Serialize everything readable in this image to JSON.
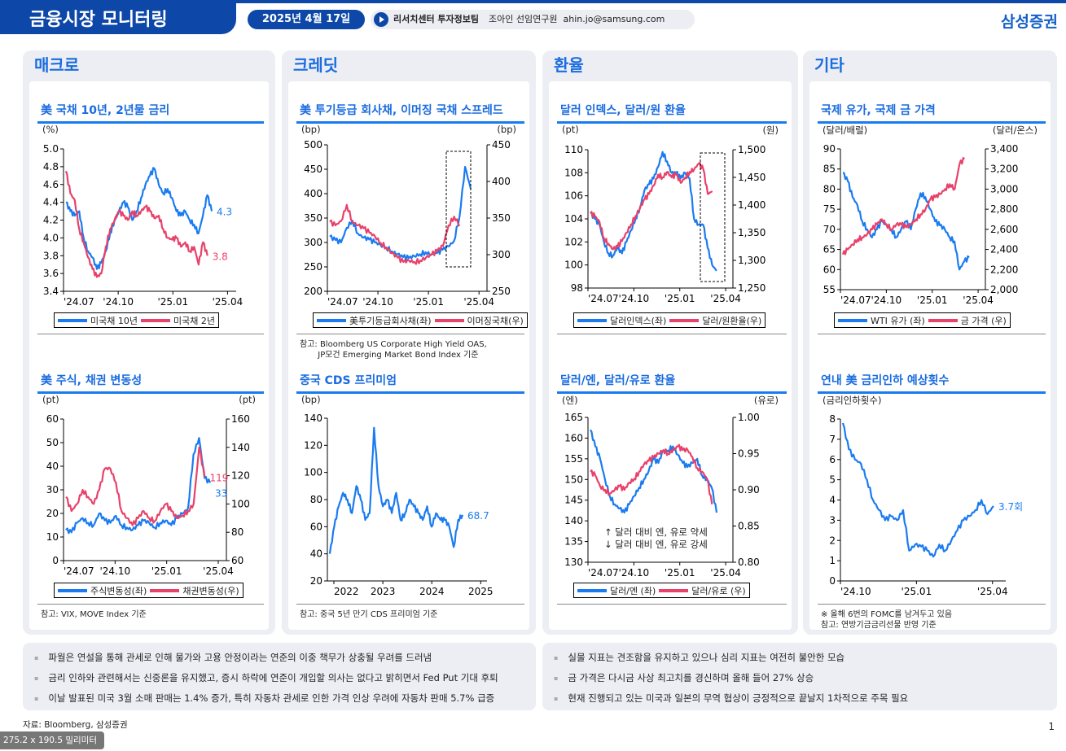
{
  "header": {
    "title": "금융시장 모니터링",
    "date": "2025년 4월 17일",
    "dept": "리서치센터 투자정보팀",
    "author": "조아인 선임연구원",
    "email": "ahin.jo@samsung.com",
    "brand": "삼성증권"
  },
  "colors": {
    "blue": "#1a7bf0",
    "red": "#e8416a",
    "accent": "#0d47a8"
  },
  "sections": [
    "매크로",
    "크레딧",
    "환율",
    "기타"
  ],
  "chart_data": [
    {
      "id": "c1",
      "type": "line",
      "title": "美 국채 10년, 2년물 금리",
      "left_unit": "(%)",
      "right_unit": "",
      "ylim": [
        3.4,
        5.0
      ],
      "yticks": [
        "5.0",
        "4.8",
        "4.6",
        "4.4",
        "4.2",
        "4.0",
        "3.8",
        "3.6",
        "3.4"
      ],
      "xticks": [
        "'24.07",
        "'24.10",
        "'25.01",
        "'25.04"
      ],
      "series": [
        {
          "name": "미국채 10년",
          "axis": "left",
          "color": "#1a7bf0",
          "end_label": "4.3",
          "values": [
            4.4,
            4.3,
            4.25,
            4.3,
            4.0,
            3.85,
            3.78,
            3.65,
            3.72,
            3.85,
            4.05,
            4.2,
            4.3,
            4.4,
            4.35,
            4.2,
            4.3,
            4.45,
            4.6,
            4.7,
            4.78,
            4.6,
            4.5,
            4.55,
            4.45,
            4.3,
            4.25,
            4.3,
            4.2,
            4.15,
            4.05,
            4.25,
            4.48,
            4.3
          ]
        },
        {
          "name": "미국채 2년",
          "axis": "left",
          "color": "#e8416a",
          "end_label": "3.8",
          "values": [
            4.75,
            4.5,
            4.42,
            4.1,
            3.95,
            3.78,
            3.65,
            3.56,
            3.6,
            3.9,
            4.1,
            4.2,
            4.3,
            4.25,
            4.2,
            4.3,
            4.25,
            4.3,
            4.35,
            4.3,
            4.22,
            4.25,
            4.1,
            4.0,
            3.98,
            4.0,
            3.9,
            3.95,
            3.85,
            3.9,
            3.7,
            3.95,
            3.8
          ]
        }
      ],
      "notes": []
    },
    {
      "id": "c2",
      "type": "line",
      "title": "美 투기등급 회사채, 이머징 국채 스프레드",
      "left_unit": "(bp)",
      "right_unit": "(bp)",
      "ylim": [
        200,
        500
      ],
      "y2lim": [
        250,
        450
      ],
      "yticks": [
        "500",
        "450",
        "400",
        "350",
        "300",
        "250",
        "200"
      ],
      "y2ticks": [
        "450",
        "400",
        "350",
        "300",
        "250"
      ],
      "xticks": [
        "'24.07",
        "'24.10",
        "'25.01",
        "'25.04"
      ],
      "series": [
        {
          "name": "美투기등급회사채(좌)",
          "axis": "left",
          "color": "#1a7bf0",
          "values": [
            312,
            305,
            300,
            330,
            345,
            318,
            310,
            306,
            300,
            295,
            290,
            282,
            276,
            270,
            268,
            272,
            276,
            280,
            275,
            278,
            285,
            292,
            302,
            352,
            455,
            410
          ]
        },
        {
          "name": "이머징국채(우)",
          "axis": "right",
          "color": "#e8416a",
          "values": [
            345,
            340,
            346,
            368,
            345,
            340,
            336,
            330,
            325,
            316,
            310,
            302,
            296,
            290,
            292,
            290,
            292,
            296,
            300,
            305,
            312,
            340,
            352,
            340
          ]
        }
      ],
      "notes": [
        "참고: Bloomberg US Corporate High Yield OAS,",
        "       JP모건 Emerging Market Bond Index 기준"
      ]
    },
    {
      "id": "c3",
      "type": "line",
      "title": "달러 인덱스, 달러/원 환율",
      "left_unit": "(pt)",
      "right_unit": "(원)",
      "ylim": [
        98,
        110
      ],
      "y2lim": [
        1250,
        1500
      ],
      "yticks": [
        "110",
        "108",
        "106",
        "104",
        "102",
        "100",
        "98"
      ],
      "y2ticks": [
        "1,500",
        "1,450",
        "1,400",
        "1,350",
        "1,300",
        "1,250"
      ],
      "xticks": [
        "'24.07",
        "'24.10",
        "'25.01",
        "'25.04"
      ],
      "series": [
        {
          "name": "달러인덱스(좌)",
          "axis": "left",
          "color": "#1a7bf0",
          "values": [
            104.5,
            104,
            103.5,
            102,
            101,
            100.8,
            101.5,
            101,
            102,
            103,
            104,
            105,
            106.5,
            107,
            107.5,
            108.5,
            109.8,
            109,
            108,
            108,
            107.5,
            108,
            107.5,
            104,
            103.5,
            103.5,
            101.5,
            100,
            99.5
          ]
        },
        {
          "name": "달러/원환율(우)",
          "axis": "right",
          "color": "#e8416a",
          "values": [
            1385,
            1380,
            1370,
            1340,
            1330,
            1320,
            1325,
            1335,
            1350,
            1365,
            1380,
            1395,
            1410,
            1420,
            1435,
            1455,
            1450,
            1460,
            1450,
            1455,
            1440,
            1450,
            1460,
            1465,
            1475,
            1465,
            1420,
            1425
          ]
        }
      ],
      "notes": []
    },
    {
      "id": "c4",
      "type": "line",
      "title": "국제 유가, 국제 금 가격",
      "left_unit": "(달러/배럴)",
      "right_unit": "(달러/온스)",
      "ylim": [
        55,
        90
      ],
      "y2lim": [
        2000,
        3400
      ],
      "yticks": [
        "90",
        "85",
        "80",
        "75",
        "70",
        "65",
        "60",
        "55"
      ],
      "y2ticks": [
        "3,400",
        "3,200",
        "3,000",
        "2,800",
        "2,600",
        "2,400",
        "2,200",
        "2,000"
      ],
      "xticks": [
        "'24.07",
        "'24.10",
        "'25.01",
        "'25.04"
      ],
      "series": [
        {
          "name": "WTI 유가 (좌)",
          "axis": "left",
          "color": "#1a7bf0",
          "values": [
            84,
            82,
            78,
            76,
            72,
            70,
            68,
            70,
            72,
            71,
            70,
            68,
            70,
            72,
            70,
            75,
            79,
            78,
            75,
            72,
            71,
            70,
            68,
            67,
            60,
            62,
            63
          ]
        },
        {
          "name": "금 가격 (우)",
          "axis": "right",
          "color": "#e8416a",
          "values": [
            2350,
            2400,
            2450,
            2500,
            2520,
            2550,
            2600,
            2650,
            2700,
            2650,
            2600,
            2650,
            2650,
            2620,
            2650,
            2700,
            2750,
            2800,
            2900,
            2920,
            2950,
            3000,
            3050,
            3000,
            3250,
            3300
          ]
        }
      ],
      "notes": []
    },
    {
      "id": "c5",
      "type": "line",
      "title": "美 주식, 채권 변동성",
      "left_unit": "(pt)",
      "right_unit": "(pt)",
      "ylim": [
        0,
        60
      ],
      "y2lim": [
        60,
        160
      ],
      "yticks": [
        "60",
        "50",
        "40",
        "30",
        "20",
        "10",
        "0"
      ],
      "y2ticks": [
        "160",
        "140",
        "120",
        "100",
        "80",
        "60"
      ],
      "xticks": [
        "'24.07",
        "'24.10",
        "'25.01",
        "'25.04"
      ],
      "series": [
        {
          "name": "주식변동성(좌)",
          "axis": "left",
          "color": "#1a7bf0",
          "end_label": "33",
          "values": [
            13,
            12,
            16,
            18,
            16,
            15,
            20,
            17,
            16,
            19,
            15,
            14,
            13,
            15,
            17,
            16,
            14,
            16,
            17,
            15,
            18,
            20,
            22,
            45,
            52,
            35,
            33
          ]
        },
        {
          "name": "채권변동성(우)",
          "axis": "right",
          "color": "#e8416a",
          "end_label": "119",
          "values": [
            105,
            95,
            100,
            110,
            105,
            100,
            110,
            125,
            125,
            115,
            95,
            90,
            85,
            90,
            95,
            90,
            88,
            95,
            100,
            95,
            90,
            92,
            95,
            100,
            140,
            119
          ]
        }
      ],
      "notes": [
        "참고: VIX, MOVE Index 기준"
      ]
    },
    {
      "id": "c6",
      "type": "line",
      "title": "중국 CDS 프리미엄",
      "left_unit": "(bp)",
      "right_unit": "",
      "ylim": [
        20,
        140
      ],
      "yticks": [
        "140",
        "120",
        "100",
        "80",
        "60",
        "40",
        "20"
      ],
      "xticks": [
        "2022",
        "2023",
        "2024",
        "2025"
      ],
      "series": [
        {
          "name": "",
          "axis": "left",
          "color": "#1a7bf0",
          "end_label": "68.7",
          "values": [
            40,
            60,
            75,
            85,
            80,
            70,
            90,
            80,
            65,
            70,
            133,
            90,
            75,
            80,
            70,
            85,
            65,
            70,
            80,
            75,
            70,
            65,
            75,
            60,
            70,
            65,
            65,
            60,
            45,
            65,
            68.7
          ]
        }
      ],
      "notes": [
        "참고: 중국 5년 만기 CDS 프리미엄 기준"
      ]
    },
    {
      "id": "c7",
      "type": "line",
      "title": "달러/엔, 달러/유로 환율",
      "left_unit": "(엔)",
      "right_unit": "(유로)",
      "ylim": [
        130,
        165
      ],
      "y2lim": [
        0.8,
        1.0
      ],
      "yticks": [
        "165",
        "160",
        "155",
        "150",
        "145",
        "140",
        "135",
        "130"
      ],
      "y2ticks": [
        "1.00",
        "0.95",
        "0.90",
        "0.85",
        "0.80"
      ],
      "xticks": [
        "'24.07",
        "'24.10",
        "'25.01",
        "'25.04"
      ],
      "series": [
        {
          "name": "달러/엔 (좌)",
          "axis": "left",
          "color": "#1a7bf0",
          "values": [
            162,
            158,
            155,
            150,
            146,
            144,
            143,
            142,
            144,
            146,
            148,
            150,
            152,
            155,
            154,
            157,
            157,
            158,
            156,
            154,
            153,
            154,
            155,
            151,
            150,
            148,
            142
          ]
        },
        {
          "name": "달러/유로 (우)",
          "axis": "right",
          "color": "#e8416a",
          "values": [
            0.925,
            0.92,
            0.905,
            0.9,
            0.895,
            0.9,
            0.905,
            0.9,
            0.91,
            0.915,
            0.925,
            0.935,
            0.94,
            0.945,
            0.95,
            0.955,
            0.95,
            0.955,
            0.96,
            0.955,
            0.955,
            0.945,
            0.93,
            0.925,
            0.915,
            0.88
          ]
        }
      ],
      "annotations": [
        "↑ 달러 대비 엔, 유로 약세",
        "↓ 달러 대비 엔, 유로 강세"
      ],
      "notes": []
    },
    {
      "id": "c8",
      "type": "line",
      "title": "연내 美 금리인하 예상횟수",
      "left_unit": "(금리인하횟수)",
      "right_unit": "",
      "ylim": [
        0,
        8
      ],
      "yticks": [
        "8",
        "7",
        "6",
        "5",
        "4",
        "3",
        "2",
        "1",
        "0"
      ],
      "xticks": [
        "'24.10",
        "'25.01",
        "'25.04"
      ],
      "series": [
        {
          "name": "",
          "axis": "left",
          "color": "#1a7bf0",
          "end_label": "3.7회",
          "values": [
            7.8,
            6.5,
            6,
            5.8,
            5,
            4,
            3.5,
            3,
            3.2,
            3,
            3.5,
            1.5,
            1.8,
            1.7,
            1.5,
            1.2,
            1.8,
            1.5,
            2.0,
            2.5,
            3.0,
            3.2,
            3.5,
            4.0,
            3.3,
            3.7
          ]
        }
      ],
      "notes": [
        "※ 올해 6번의 FOMC를 남겨두고 있음",
        "참고: 연방기금금리선물 반영 기준"
      ]
    }
  ],
  "bullets_left": [
    "파월은 연설을 통해 관세로 인해 물가와 고용 안정이라는 연준의 이중 책무가 상충될 우려를 드러냄",
    "금리 인하와 관련해서는 신중론을 유지했고, 증시 하락에 연준이 개입할 의사는 없다고 밝히면서 Fed Put 기대 후퇴",
    "이날 발표된 미국 3월 소매 판매는 1.4% 증가, 특히 자동차 관세로 인한 가격 인상 우려에 자동차 판매 5.7% 급증"
  ],
  "bullets_right": [
    "실물 지표는 견조함을 유지하고 있으나 심리 지표는 여전히 불안한 모습",
    "금 가격은 다시금 사상 최고치를 경신하며 올해 들어 27% 상승",
    "현재 진행되고 있는 미국과 일본의 무역 협상이 긍정적으로 끝날지 1차적으로 주목 필요"
  ],
  "footer": {
    "source": "자료: Bloomberg, 삼성증권",
    "dimensions": "275.2 x 190.5 밀리미터",
    "page": "1"
  }
}
